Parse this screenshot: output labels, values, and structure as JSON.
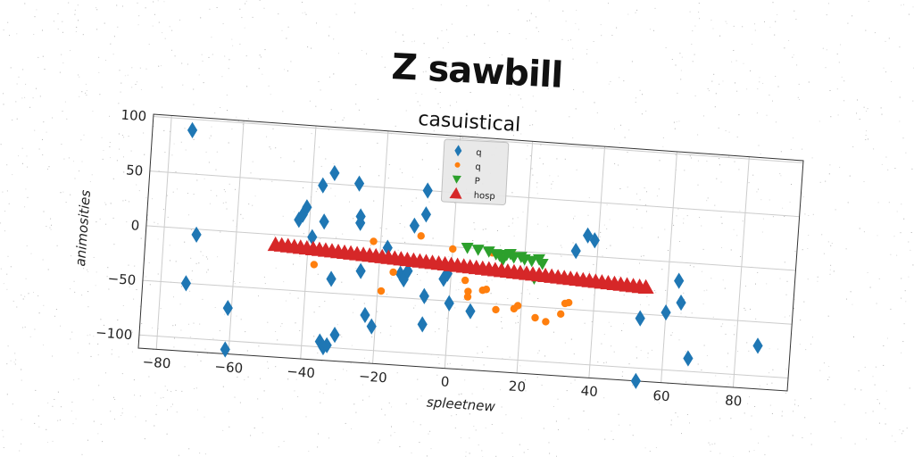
{
  "page_title": "Z sawbill",
  "colors": {
    "q_diamond": "#1f77b4",
    "q_circle": "#ff7f0e",
    "p_triangle": "#2ca02c",
    "hosp_triangle": "#d62728"
  },
  "chart_data": {
    "type": "scatter",
    "title": "casuistical",
    "xlabel": "spleetnew",
    "ylabel": "animosities",
    "xlim": [
      -85,
      95
    ],
    "ylim": [
      -112,
      102
    ],
    "xticks": [
      -80,
      -60,
      -40,
      -20,
      0,
      20,
      40,
      60,
      80
    ],
    "yticks": [
      -100,
      -50,
      0,
      50,
      100
    ],
    "xtick_labels": [
      "−80",
      "−60",
      "−40",
      "−20",
      "0",
      "20",
      "40",
      "60",
      "80"
    ],
    "ytick_labels": [
      "−100",
      "−50",
      "0",
      "50",
      "100"
    ],
    "grid": true,
    "legend": "top-center",
    "series": [
      {
        "name": "q",
        "marker": "diamond",
        "color": "#1f77b4",
        "points": [
          [
            -74,
            90
          ],
          [
            -71,
            -5
          ],
          [
            -73,
            -50
          ],
          [
            -61,
            -70
          ],
          [
            -61,
            -108
          ],
          [
            -43,
            15
          ],
          [
            -42,
            20
          ],
          [
            -41,
            27
          ],
          [
            -39,
            0
          ],
          [
            -37,
            48
          ],
          [
            -36,
            15
          ],
          [
            -34,
            60
          ],
          [
            -33,
            -37
          ],
          [
            -35,
            -95
          ],
          [
            -34,
            -100
          ],
          [
            -33,
            -98
          ],
          [
            -31,
            -88
          ],
          [
            -27,
            52
          ],
          [
            -26,
            22
          ],
          [
            -26,
            16
          ],
          [
            -25,
            -28
          ],
          [
            -23,
            -68
          ],
          [
            -21,
            -78
          ],
          [
            -18,
            -5
          ],
          [
            -14,
            -28
          ],
          [
            -13,
            -33
          ],
          [
            -12,
            -25
          ],
          [
            -11,
            17
          ],
          [
            -8,
            50
          ],
          [
            -8,
            28
          ],
          [
            -7,
            -47
          ],
          [
            -7,
            -73
          ],
          [
            -2,
            -30
          ],
          [
            -1,
            -25
          ],
          [
            0,
            -52
          ],
          [
            6,
            -58
          ],
          [
            34,
            4
          ],
          [
            37,
            19
          ],
          [
            39,
            15
          ],
          [
            53,
            -54
          ],
          [
            53,
            -112
          ],
          [
            60,
            -47
          ],
          [
            63,
            -17
          ],
          [
            64,
            -37
          ],
          [
            67,
            -88
          ],
          [
            86,
            -72
          ]
        ]
      },
      {
        "name": "q",
        "marker": "circle",
        "color": "#ff7f0e",
        "points": [
          [
            -38,
            -25
          ],
          [
            -22,
            0
          ],
          [
            -19,
            -45
          ],
          [
            -16,
            -27
          ],
          [
            -9,
            8
          ],
          [
            0,
            -2
          ],
          [
            4,
            -30
          ],
          [
            5,
            -40
          ],
          [
            5,
            -45
          ],
          [
            9,
            -38
          ],
          [
            10,
            -37
          ],
          [
            13,
            -55
          ],
          [
            17,
            -4
          ],
          [
            18,
            -53
          ],
          [
            19,
            -50
          ],
          [
            24,
            -60
          ],
          [
            27,
            -63
          ],
          [
            31,
            -55
          ],
          [
            32,
            -45
          ],
          [
            33,
            -44
          ],
          [
            11,
            -3
          ],
          [
            14,
            -5
          ]
        ]
      },
      {
        "name": "P",
        "marker": "triangle-down",
        "color": "#2ca02c",
        "points": [
          [
            4,
            0
          ],
          [
            7,
            -1
          ],
          [
            10,
            -2
          ],
          [
            12,
            -4
          ],
          [
            13,
            -5
          ],
          [
            15,
            -4
          ],
          [
            16,
            -3
          ],
          [
            17,
            -6
          ],
          [
            19,
            -5
          ],
          [
            20,
            -7
          ],
          [
            22,
            -8
          ],
          [
            24,
            -6
          ],
          [
            25,
            -10
          ],
          [
            23,
            -24
          ],
          [
            14,
            -9
          ]
        ]
      },
      {
        "name": "hosp",
        "marker": "triangle-up",
        "color": "#d62728",
        "line": {
          "x_from": -49,
          "x_to": 54,
          "y_from": -9,
          "y_to": -25,
          "count": 60
        }
      }
    ]
  }
}
